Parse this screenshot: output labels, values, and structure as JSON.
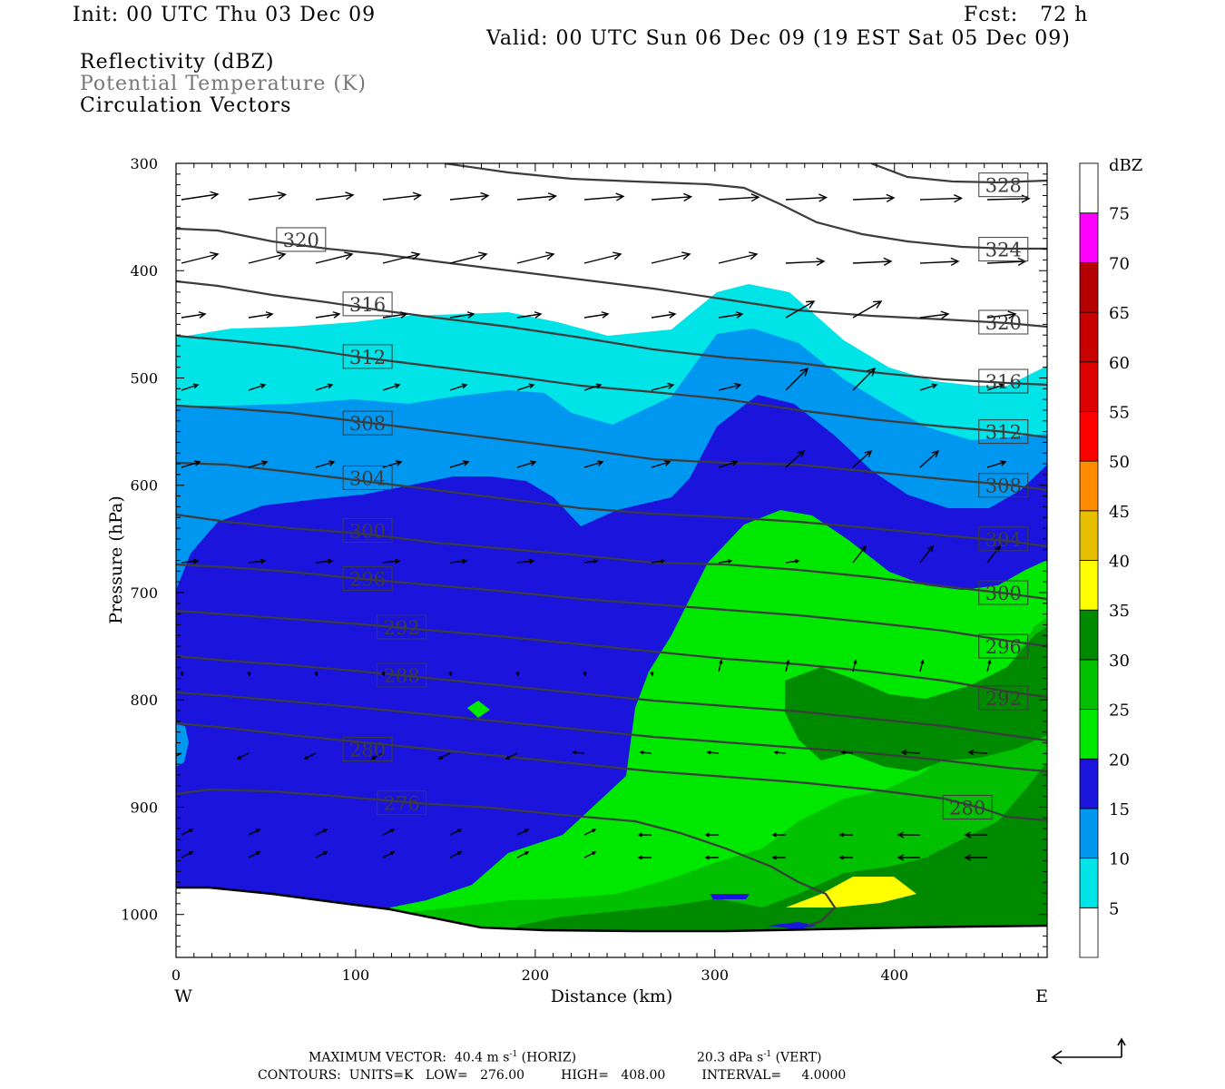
{
  "header": {
    "init": "Init: 00 UTC Thu 03 Dec 09",
    "fcst": "Fcst:   72 h",
    "valid": "Valid: 00 UTC Sun 06 Dec 09 (19 EST Sat 05 Dec 09)",
    "field1": "Reflectivity (dBZ)",
    "field2": "Potential Temperature (K)",
    "field3": "Circulation Vectors"
  },
  "footer": {
    "max_vector": "MAXIMUM VECTOR:  40.4 m s",
    "max_vector_exp": "-1",
    "max_vector_unit": " (HORIZ)",
    "max_vert": "20.3 dPa s",
    "max_vert_exp": "-1",
    "max_vert_unit": " (VERT)",
    "contours": "CONTOURS:  UNITS=K   LOW=   276.00         HIGH=   408.00         INTERVAL=     4.0000"
  },
  "colors": {
    "c5": "#00e4e8",
    "c10": "#0097f0",
    "c15": "#1a14dc",
    "c20": "#00e800",
    "c25": "#00c000",
    "c30": "#008a00",
    "c35": "#ffff00",
    "c40": "#e6c000",
    "c45": "#ff8c00",
    "c50": "#ff0000",
    "c55": "#dc0000",
    "c60": "#c80000",
    "c65": "#b40000",
    "c70": "#ff00ff",
    "c75": "#9955c8",
    "contour": "#3c3c3c"
  },
  "chart_data": {
    "type": "cross-section",
    "xlabel": "Distance (km)",
    "ylabel": "Pressure (hPa)",
    "x_ticks": [
      0,
      100,
      200,
      300,
      400
    ],
    "y_ticks": [
      300,
      400,
      500,
      600,
      700,
      800,
      900,
      1000
    ],
    "xlim": [
      0,
      485
    ],
    "ylim": [
      1040,
      300
    ],
    "y_scale": "linear",
    "west_label": "W",
    "east_label": "E",
    "colorbar": {
      "title": "dBZ",
      "levels": [
        "5",
        "10",
        "15",
        "20",
        "25",
        "30",
        "35",
        "40",
        "45",
        "50",
        "55",
        "60",
        "65",
        "70",
        "75"
      ]
    },
    "contour_labels": [
      {
        "value": "328",
        "x": 447,
        "p": 320
      },
      {
        "value": "324",
        "x": 447,
        "p": 380
      },
      {
        "value": "320",
        "x": 56,
        "p": 371
      },
      {
        "value": "320",
        "x": 447,
        "p": 448
      },
      {
        "value": "316",
        "x": 93,
        "p": 431
      },
      {
        "value": "316",
        "x": 447,
        "p": 503
      },
      {
        "value": "312",
        "x": 93,
        "p": 480
      },
      {
        "value": "312",
        "x": 447,
        "p": 550
      },
      {
        "value": "308",
        "x": 93,
        "p": 542
      },
      {
        "value": "308",
        "x": 447,
        "p": 600
      },
      {
        "value": "304",
        "x": 93,
        "p": 593
      },
      {
        "value": "304",
        "x": 447,
        "p": 650
      },
      {
        "value": "300",
        "x": 93,
        "p": 642
      },
      {
        "value": "300",
        "x": 447,
        "p": 700
      },
      {
        "value": "296",
        "x": 93,
        "p": 687
      },
      {
        "value": "296",
        "x": 447,
        "p": 750
      },
      {
        "value": "292",
        "x": 112,
        "p": 732
      },
      {
        "value": "292",
        "x": 447,
        "p": 798
      },
      {
        "value": "288",
        "x": 112,
        "p": 777
      },
      {
        "value": "280",
        "x": 93,
        "p": 846
      },
      {
        "value": "280",
        "x": 427,
        "p": 900
      },
      {
        "value": "276",
        "x": 112,
        "p": 896
      }
    ]
  }
}
